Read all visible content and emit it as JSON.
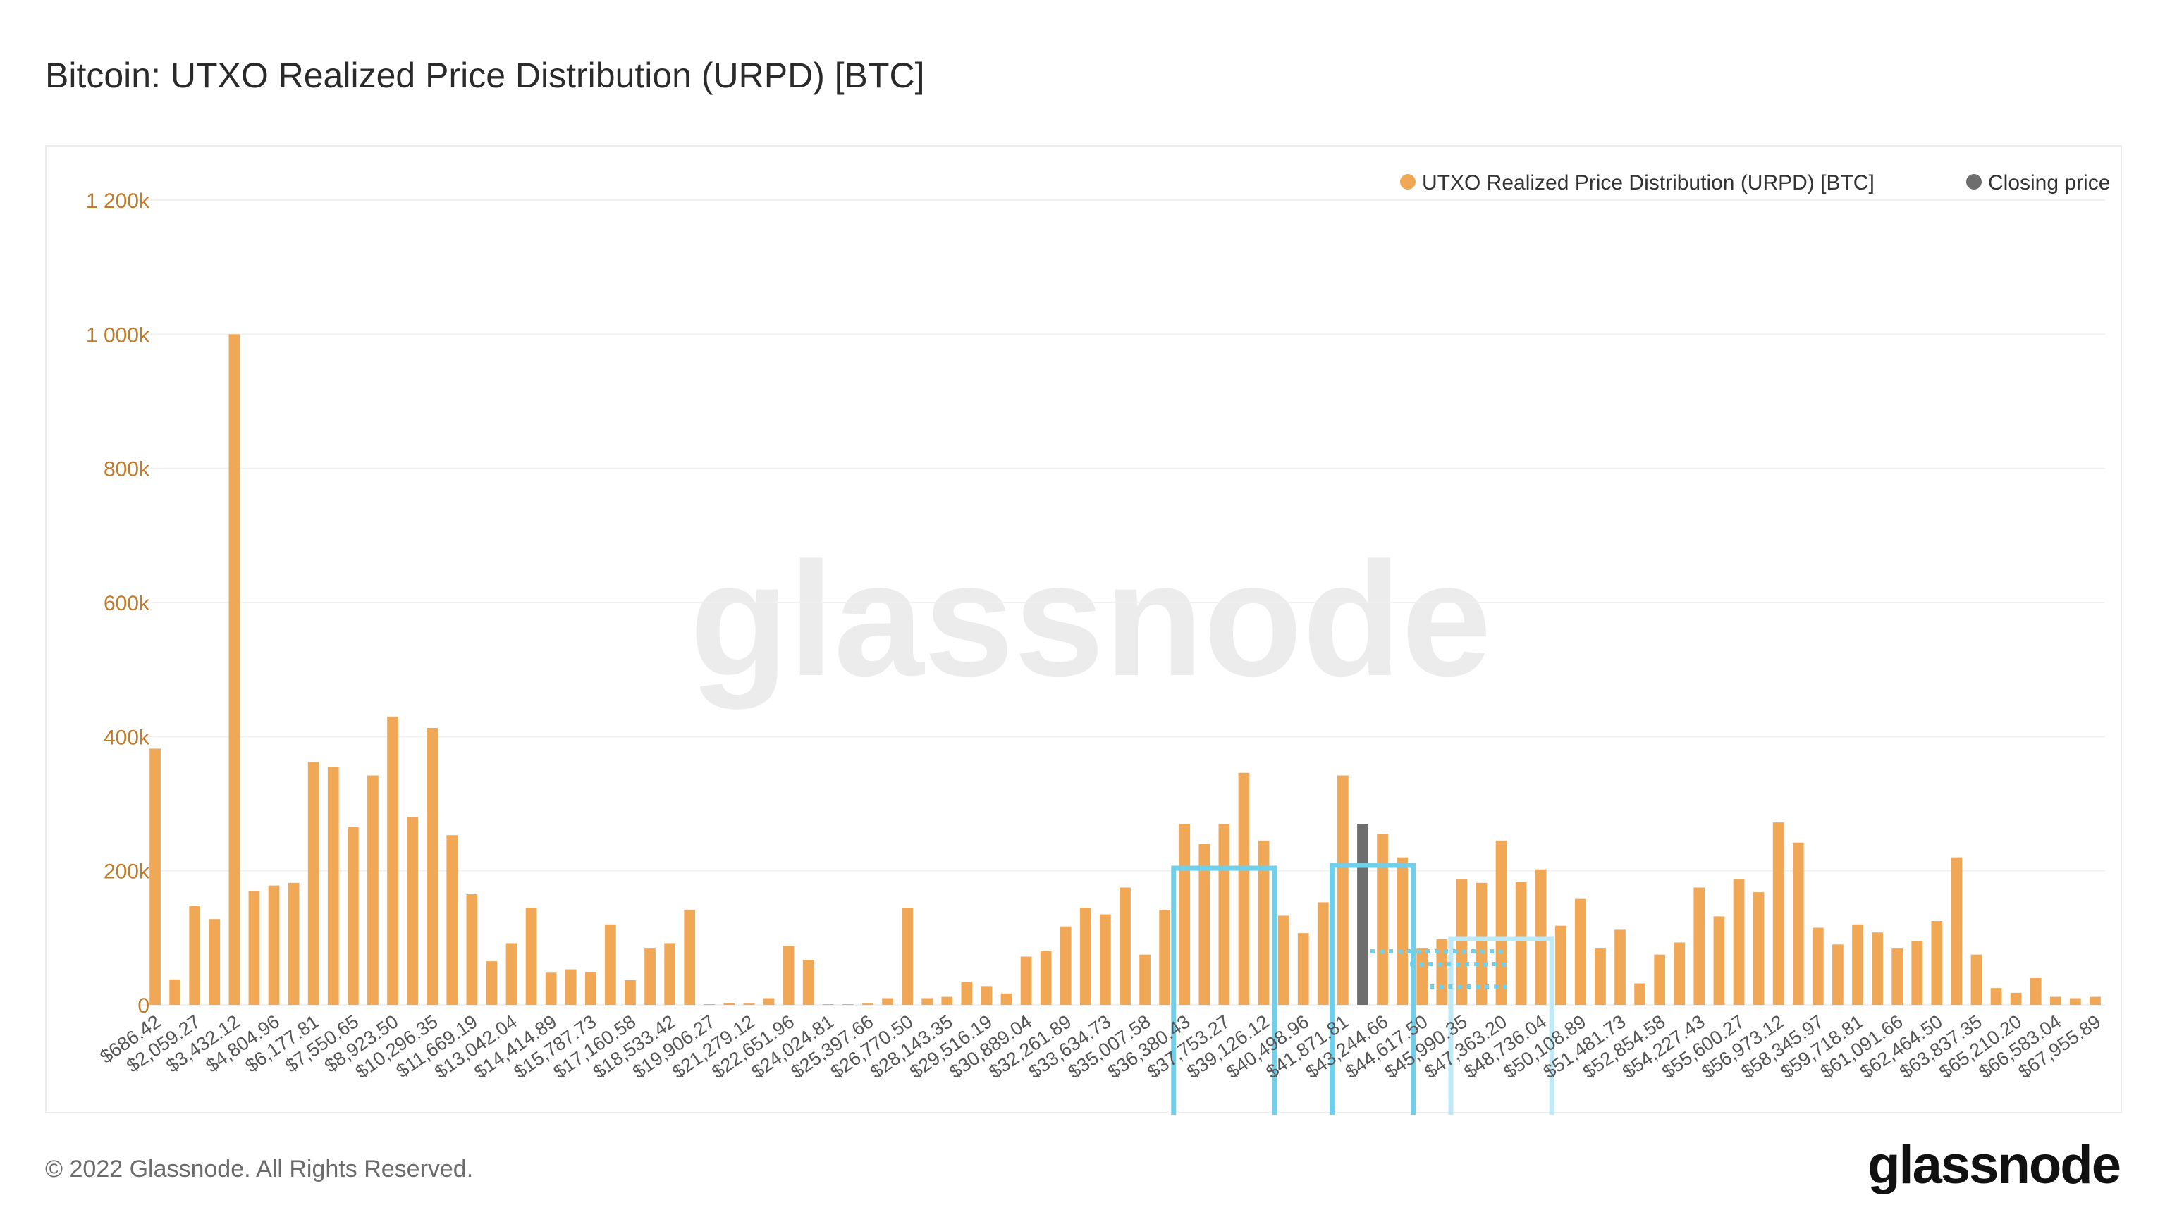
{
  "header": {
    "title": "Bitcoin: UTXO Realized Price Distribution (URPD) [BTC]"
  },
  "footer": {
    "copyright": "© 2022 Glassnode. All Rights Reserved.",
    "logo": "glassnode"
  },
  "watermark": {
    "text": "glassnode"
  },
  "colors": {
    "bar": "#F0A857",
    "current": "#6E6E6E",
    "axis_text": "#C07A2A",
    "highlight": "#6FD0EC",
    "highlight_light": "#BFE9F5",
    "grid": "#F1F1F1"
  },
  "chart_data": {
    "type": "bar",
    "title": "Bitcoin: UTXO Realized Price Distribution (URPD) [BTC]",
    "xlabel": "",
    "ylabel": "",
    "ylim": [
      0,
      1200000
    ],
    "y_ticks": [
      0,
      200000,
      400000,
      600000,
      800000,
      1000000,
      1200000
    ],
    "y_tick_labels": [
      "0",
      "200k",
      "400k",
      "600k",
      "800k",
      "1 000k",
      "1 200k"
    ],
    "grid": true,
    "legend_position": "top-right",
    "legend": [
      {
        "label": "UTXO Realized Price Distribution (URPD) [BTC]",
        "color": "#F0A857"
      },
      {
        "label": "Closing price",
        "color": "#6E6E6E"
      }
    ],
    "x_tick_labels": [
      "$686.42",
      "$2,059.27",
      "$3,432.12",
      "$4,804.96",
      "$6,177.81",
      "$7,550.65",
      "$8,923.50",
      "$10,296.35",
      "$11,669.19",
      "$13,042.04",
      "$14,414.89",
      "$15,787.73",
      "$17,160.58",
      "$18,533.42",
      "$19,906.27",
      "$21,279.12",
      "$22,651.96",
      "$24,024.81",
      "$25,397.66",
      "$26,770.50",
      "$28,143.35",
      "$29,516.19",
      "$30,889.04",
      "$32,261.89",
      "$33,634.73",
      "$35,007.58",
      "$36,380.43",
      "$37,753.27",
      "$39,126.12",
      "$40,498.96",
      "$41,871.81",
      "$43,244.66",
      "$44,617.50",
      "$45,990.35",
      "$47,363.20",
      "$48,736.04",
      "$50,108.89",
      "$51,481.73",
      "$52,854.58",
      "$54,227.43",
      "$55,600.27",
      "$56,973.12",
      "$58,345.97",
      "$59,718.81",
      "$61,091.66",
      "$62,464.50",
      "$63,837.35",
      "$65,210.20",
      "$66,583.04",
      "$67,955.89"
    ],
    "values": [
      382000,
      38000,
      148000,
      128000,
      1000000,
      170000,
      178000,
      182000,
      362000,
      355000,
      265000,
      342000,
      430000,
      280000,
      413000,
      253000,
      165000,
      65000,
      92000,
      145000,
      48000,
      53000,
      49000,
      120000,
      37000,
      85000,
      92000,
      142000,
      1000,
      3000,
      2000,
      10000,
      88000,
      67000,
      1000,
      1000,
      2000,
      10000,
      145000,
      10000,
      12000,
      34000,
      28000,
      17000,
      72000,
      81000,
      117000,
      145000,
      135000,
      175000,
      75000,
      142000,
      270000,
      240000,
      270000,
      346000,
      245000,
      133000,
      107000,
      153000,
      342000,
      270000,
      255000,
      220000,
      85000,
      98000,
      187000,
      182000,
      245000,
      183000,
      202000,
      118000,
      158000,
      85000,
      112000,
      32000,
      75000,
      93000,
      175000,
      132000,
      187000,
      168000,
      272000,
      242000,
      115000,
      90000,
      120000,
      108000,
      85000,
      95000,
      125000,
      220000,
      75000,
      25000,
      18000,
      40000,
      12000,
      10000,
      12000
    ],
    "highlight_index": 61,
    "highlight_series": "Closing price",
    "annotations": [
      {
        "type": "box",
        "from_index": 52,
        "to_index": 56,
        "color": "#6FD0EC"
      },
      {
        "type": "box",
        "from_index": 60,
        "to_index": 63,
        "color": "#6FD0EC"
      },
      {
        "type": "box",
        "from_index": 66,
        "to_index": 70,
        "color": "#BFE9F5"
      }
    ]
  }
}
